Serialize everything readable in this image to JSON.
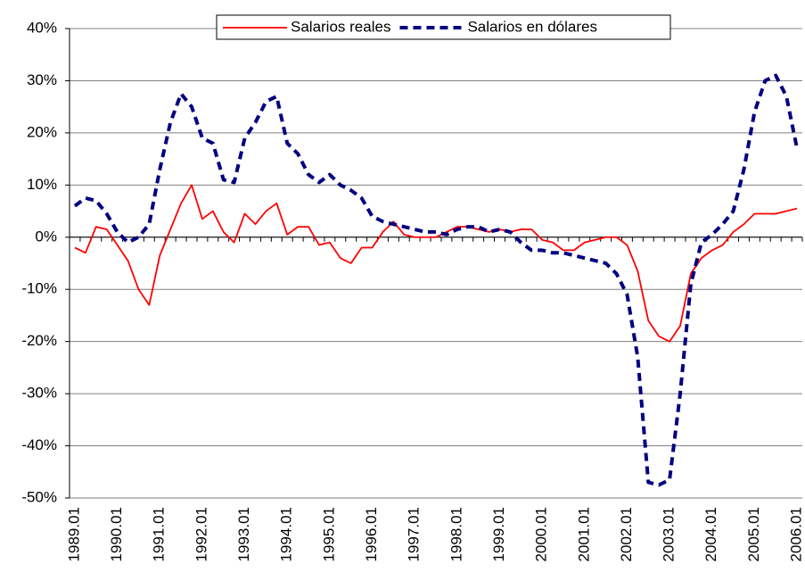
{
  "chart_data": {
    "type": "line",
    "categories": [
      "1989.01",
      null,
      null,
      null,
      "1990.01",
      null,
      null,
      null,
      "1991.01",
      null,
      null,
      null,
      "1992.01",
      null,
      null,
      null,
      "1993.01",
      null,
      null,
      null,
      "1994.01",
      null,
      null,
      null,
      "1995.01",
      null,
      null,
      null,
      "1996.01",
      null,
      null,
      null,
      "1997.01",
      null,
      null,
      null,
      "1998.01",
      null,
      null,
      null,
      "1999.01",
      null,
      null,
      null,
      "2000.01",
      null,
      null,
      null,
      "2001.01",
      null,
      null,
      null,
      "2002.01",
      null,
      null,
      null,
      "2003.01",
      null,
      null,
      null,
      "2004.01",
      null,
      null,
      null,
      "2005.01",
      null,
      null,
      null,
      "2006.01"
    ],
    "series": [
      {
        "name": "Salarios reales",
        "color": "#ff0000",
        "dashed": false,
        "values": [
          -2,
          -3,
          2,
          1.5,
          -1.5,
          -4.5,
          -10,
          -13,
          -3.5,
          1.5,
          6.5,
          10,
          3.5,
          5,
          1,
          -1,
          4.5,
          2.5,
          5,
          6.5,
          0.5,
          2,
          2,
          -1.5,
          -1,
          -4,
          -5,
          -2,
          -2,
          1,
          3,
          0.5,
          0,
          0,
          0,
          1,
          2,
          2,
          1.5,
          1,
          1.5,
          1,
          1.5,
          1.5,
          -0.5,
          -1,
          -2.5,
          -2.5,
          -1,
          -0.5,
          0,
          0,
          -1.5,
          -6.5,
          -16,
          -19,
          -20,
          -17,
          -7,
          -4,
          -2.5,
          -1.5,
          1,
          2.5,
          4.5,
          4.5,
          4.5,
          5,
          5.5
        ]
      },
      {
        "name": "Salarios en dólares",
        "color": "#000080",
        "dashed": true,
        "values": [
          6,
          7.5,
          7,
          4.5,
          1,
          -1,
          0,
          2.5,
          13,
          22,
          27.5,
          25,
          19,
          18,
          11,
          10.5,
          19,
          22,
          26,
          27,
          18,
          16,
          12,
          10.5,
          12,
          10,
          9,
          7.5,
          4,
          3,
          2.5,
          2,
          1.5,
          1,
          1,
          0.5,
          1.5,
          2,
          2,
          1,
          1.5,
          1,
          -1,
          -2.5,
          -2.5,
          -3,
          -3,
          -3.5,
          -4,
          -4.5,
          -5,
          -7,
          -11,
          -23,
          -47,
          -47.5,
          -46.5,
          -30,
          -9,
          -1,
          0.5,
          2.5,
          5,
          13,
          24,
          30,
          31,
          27,
          17
        ]
      }
    ],
    "ylim": [
      -50,
      40
    ],
    "yticks": [
      {
        "value": -50,
        "label": "-50%"
      },
      {
        "value": -40,
        "label": "-40%"
      },
      {
        "value": -30,
        "label": "-30%"
      },
      {
        "value": -20,
        "label": "-20%"
      },
      {
        "value": -10,
        "label": "-10%"
      },
      {
        "value": 0,
        "label": "0%"
      },
      {
        "value": 10,
        "label": "10%"
      },
      {
        "value": 20,
        "label": "20%"
      },
      {
        "value": 30,
        "label": "30%"
      },
      {
        "value": 40,
        "label": "40%"
      }
    ],
    "grid": true
  }
}
